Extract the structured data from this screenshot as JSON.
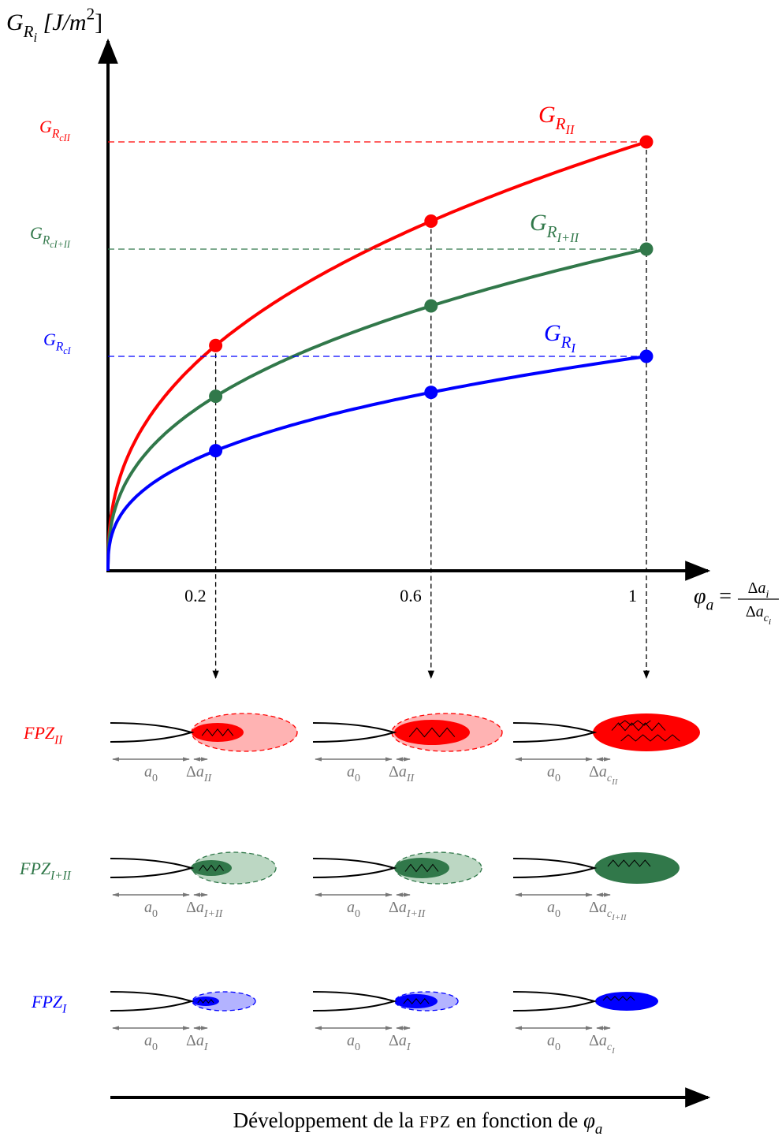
{
  "y_axis_label": [
    {
      "text": "G",
      "pos": "base"
    },
    {
      "text": "R",
      "pos": "sub"
    },
    {
      "text": "i",
      "pos": "subsub"
    },
    {
      "text": " [J/m",
      "pos": "base"
    },
    {
      "text": "2",
      "pos": "sup",
      "roman": true
    },
    {
      "text": "]",
      "pos": "base",
      "roman": true
    }
  ],
  "x_axis_label": {
    "lhs": [
      {
        "text": "φ",
        "pos": "base"
      },
      {
        "text": "a",
        "pos": "sub"
      },
      {
        "text": " = ",
        "pos": "base",
        "roman": true
      }
    ],
    "numerator": [
      {
        "text": "Δ",
        "pos": "base",
        "roman": true
      },
      {
        "text": "a",
        "pos": "base"
      },
      {
        "text": "i",
        "pos": "sub"
      }
    ],
    "denominator": [
      {
        "text": "Δ",
        "pos": "base",
        "roman": true
      },
      {
        "text": "a",
        "pos": "base"
      },
      {
        "text": "c",
        "pos": "sub"
      },
      {
        "text": "i",
        "pos": "subsub"
      }
    ]
  },
  "x_ticks": [
    0.2,
    0.6,
    1
  ],
  "levels": [
    {
      "color": "#ff0000",
      "axis_label": [
        {
          "text": "G",
          "pos": "base"
        },
        {
          "text": "R",
          "pos": "sub"
        },
        {
          "text": "c",
          "pos": "subsub"
        },
        {
          "text": "II",
          "pos": "subsub"
        }
      ],
      "curve_label": [
        {
          "text": "G",
          "pos": "base"
        },
        {
          "text": "R",
          "pos": "sub"
        },
        {
          "text": "II",
          "pos": "subsub"
        }
      ]
    },
    {
      "color": "#31784a",
      "axis_label": [
        {
          "text": "G",
          "pos": "base"
        },
        {
          "text": "R",
          "pos": "sub"
        },
        {
          "text": "c",
          "pos": "subsub"
        },
        {
          "text": "I+II",
          "pos": "subsub"
        }
      ],
      "curve_label": [
        {
          "text": "G",
          "pos": "base"
        },
        {
          "text": "R",
          "pos": "sub"
        },
        {
          "text": "I+II",
          "pos": "subsub"
        }
      ]
    },
    {
      "color": "#0000ff",
      "axis_label": [
        {
          "text": "G",
          "pos": "base"
        },
        {
          "text": "R",
          "pos": "sub"
        },
        {
          "text": "c",
          "pos": "subsub"
        },
        {
          "text": "I",
          "pos": "subsub"
        }
      ],
      "curve_label": [
        {
          "text": "G",
          "pos": "base"
        },
        {
          "text": "R",
          "pos": "sub"
        },
        {
          "text": "I",
          "pos": "subsub"
        }
      ]
    }
  ],
  "fpz_rows": [
    {
      "label": [
        {
          "text": "FPZ",
          "pos": "base"
        },
        {
          "text": "II",
          "pos": "sub"
        }
      ],
      "cells": [
        {
          "a0": [
            {
              "text": "a",
              "pos": "base"
            },
            {
              "text": "0",
              "pos": "sub",
              "roman": true
            }
          ],
          "da": [
            {
              "text": "Δ",
              "pos": "base",
              "roman": true
            },
            {
              "text": "a",
              "pos": "base"
            },
            {
              "text": "II",
              "pos": "sub"
            }
          ]
        },
        {
          "a0": [
            {
              "text": "a",
              "pos": "base"
            },
            {
              "text": "0",
              "pos": "sub",
              "roman": true
            }
          ],
          "da": [
            {
              "text": "Δ",
              "pos": "base",
              "roman": true
            },
            {
              "text": "a",
              "pos": "base"
            },
            {
              "text": "II",
              "pos": "sub"
            }
          ]
        },
        {
          "a0": [
            {
              "text": "a",
              "pos": "base"
            },
            {
              "text": "0",
              "pos": "sub",
              "roman": true
            }
          ],
          "da": [
            {
              "text": "Δ",
              "pos": "base",
              "roman": true
            },
            {
              "text": "a",
              "pos": "base"
            },
            {
              "text": "c",
              "pos": "sub"
            },
            {
              "text": "II",
              "pos": "subsub"
            }
          ]
        }
      ]
    },
    {
      "label": [
        {
          "text": "FPZ",
          "pos": "base"
        },
        {
          "text": "I+II",
          "pos": "sub"
        }
      ],
      "cells": [
        {
          "a0": [
            {
              "text": "a",
              "pos": "base"
            },
            {
              "text": "0",
              "pos": "sub",
              "roman": true
            }
          ],
          "da": [
            {
              "text": "Δ",
              "pos": "base",
              "roman": true
            },
            {
              "text": "a",
              "pos": "base"
            },
            {
              "text": "I+II",
              "pos": "sub"
            }
          ]
        },
        {
          "a0": [
            {
              "text": "a",
              "pos": "base"
            },
            {
              "text": "0",
              "pos": "sub",
              "roman": true
            }
          ],
          "da": [
            {
              "text": "Δ",
              "pos": "base",
              "roman": true
            },
            {
              "text": "a",
              "pos": "base"
            },
            {
              "text": "I+II",
              "pos": "sub"
            }
          ]
        },
        {
          "a0": [
            {
              "text": "a",
              "pos": "base"
            },
            {
              "text": "0",
              "pos": "sub",
              "roman": true
            }
          ],
          "da": [
            {
              "text": "Δ",
              "pos": "base",
              "roman": true
            },
            {
              "text": "a",
              "pos": "base"
            },
            {
              "text": "c",
              "pos": "sub"
            },
            {
              "text": "I+II",
              "pos": "subsub"
            }
          ]
        }
      ]
    },
    {
      "label": [
        {
          "text": "FPZ",
          "pos": "base"
        },
        {
          "text": "I",
          "pos": "sub"
        }
      ],
      "cells": [
        {
          "a0": [
            {
              "text": "a",
              "pos": "base"
            },
            {
              "text": "0",
              "pos": "sub",
              "roman": true
            }
          ],
          "da": [
            {
              "text": "Δ",
              "pos": "base",
              "roman": true
            },
            {
              "text": "a",
              "pos": "base"
            },
            {
              "text": "I",
              "pos": "sub"
            }
          ]
        },
        {
          "a0": [
            {
              "text": "a",
              "pos": "base"
            },
            {
              "text": "0",
              "pos": "sub",
              "roman": true
            }
          ],
          "da": [
            {
              "text": "Δ",
              "pos": "base",
              "roman": true
            },
            {
              "text": "a",
              "pos": "base"
            },
            {
              "text": "I",
              "pos": "sub"
            }
          ]
        },
        {
          "a0": [
            {
              "text": "a",
              "pos": "base"
            },
            {
              "text": "0",
              "pos": "sub",
              "roman": true
            }
          ],
          "da": [
            {
              "text": "Δ",
              "pos": "base",
              "roman": true
            },
            {
              "text": "a",
              "pos": "base"
            },
            {
              "text": "c",
              "pos": "sub"
            },
            {
              "text": "I",
              "pos": "subsub"
            }
          ]
        }
      ]
    }
  ],
  "caption": [
    {
      "text": "Développement de la ",
      "pos": "base",
      "roman": true
    },
    {
      "text": "FPZ",
      "pos": "base",
      "smallcaps": true
    },
    {
      "text": " en fonction de ",
      "pos": "base",
      "roman": true
    },
    {
      "text": "φ",
      "pos": "base"
    },
    {
      "text": "a",
      "pos": "sub"
    }
  ]
}
